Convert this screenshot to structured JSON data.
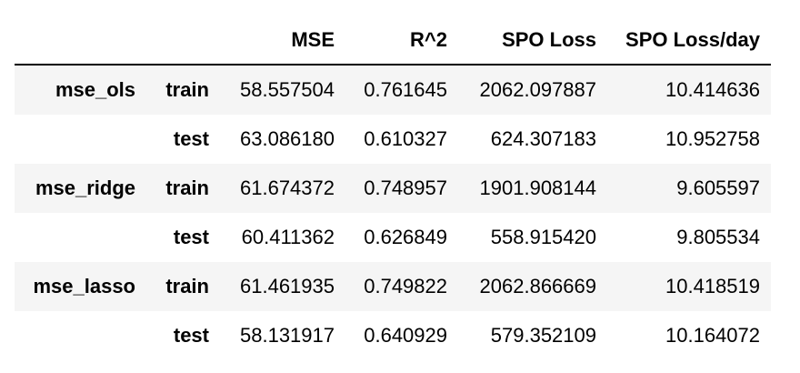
{
  "columns": [
    "MSE",
    "R^2",
    "SPO Loss",
    "SPO Loss/day"
  ],
  "rows": [
    {
      "model": "mse_ols",
      "split": "train",
      "values": [
        "58.557504",
        "0.761645",
        "2062.097887",
        "10.414636"
      ]
    },
    {
      "model": "",
      "split": "test",
      "values": [
        "63.086180",
        "0.610327",
        "624.307183",
        "10.952758"
      ]
    },
    {
      "model": "mse_ridge",
      "split": "train",
      "values": [
        "61.674372",
        "0.748957",
        "1901.908144",
        "9.605597"
      ]
    },
    {
      "model": "",
      "split": "test",
      "values": [
        "60.411362",
        "0.626849",
        "558.915420",
        "9.805534"
      ]
    },
    {
      "model": "mse_lasso",
      "split": "train",
      "values": [
        "61.461935",
        "0.749822",
        "2062.866669",
        "10.418519"
      ]
    },
    {
      "model": "",
      "split": "test",
      "values": [
        "58.131917",
        "0.640929",
        "579.352109",
        "10.164072"
      ]
    }
  ]
}
